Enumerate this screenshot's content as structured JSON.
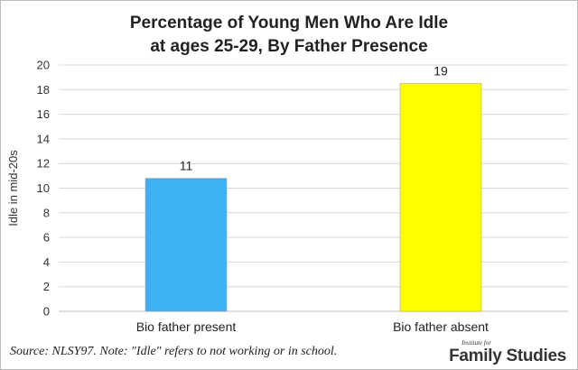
{
  "chart_data": {
    "type": "bar",
    "title_lines": [
      "Percentage of Young Men Who Are Idle",
      "at ages 25-29, By Father Presence"
    ],
    "ylabel": "Idle in mid-20s",
    "xlabel": "",
    "ylim": [
      0,
      20
    ],
    "yticks": [
      0,
      2,
      4,
      6,
      8,
      10,
      12,
      14,
      16,
      18,
      20
    ],
    "categories": [
      "Bio father present",
      "Bio father absent"
    ],
    "values": [
      10.8,
      18.5
    ],
    "data_labels": [
      "11",
      "19"
    ],
    "colors": [
      "#3db1f2",
      "#ffff00"
    ],
    "grid": true,
    "legend": "none"
  },
  "footer": {
    "source": "Source: NLSY97. Note: \"Idle\" refers to not working or in school."
  },
  "logo": {
    "small": "Institute for",
    "main": "Family Studies"
  }
}
